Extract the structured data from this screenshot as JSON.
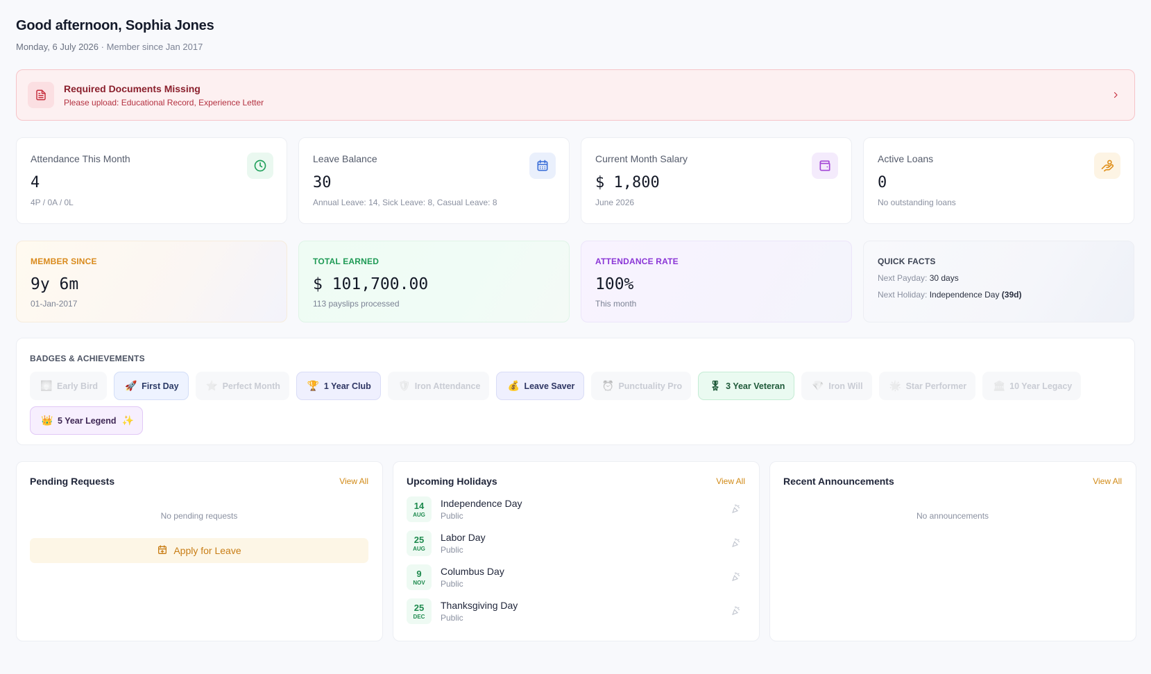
{
  "greeting": {
    "title": "Good afternoon, Sophia Jones",
    "date": "Monday, 6 July 2026",
    "separator": " · ",
    "member": "Member since Jan 2017"
  },
  "alert": {
    "title": "Required Documents Missing",
    "message": "Please upload: Educational Record, Experience Letter",
    "icon": "document-icon"
  },
  "stats": [
    {
      "label": "Attendance This Month",
      "value": "4",
      "note": "4P / 0A / 0L",
      "icon": "clock-icon",
      "color": "#21a15c",
      "bg": "#eaf8f0"
    },
    {
      "label": "Leave Balance",
      "value": "30",
      "note": "Annual Leave: 14, Sick Leave: 8, Casual Leave: 8",
      "icon": "calendar-icon",
      "color": "#3b6fd8",
      "bg": "#eaf0fc"
    },
    {
      "label": "Current Month Salary",
      "value": "$ 1,800",
      "note": "June 2026",
      "icon": "wallet-icon",
      "color": "#a346d6",
      "bg": "#f4ebfc"
    },
    {
      "label": "Active Loans",
      "value": "0",
      "note": "No outstanding loans",
      "icon": "hand-coins-icon",
      "color": "#e0901c",
      "bg": "#fdf4e4"
    }
  ],
  "highlights": {
    "member_since": {
      "label": "MEMBER SINCE",
      "value": "9y 6m",
      "note": "01-Jan-2017"
    },
    "total_earned": {
      "label": "TOTAL EARNED",
      "value": "$ 101,700.00",
      "note": "113 payslips processed"
    },
    "attendance_rate": {
      "label": "ATTENDANCE RATE",
      "value": "100%",
      "note": "This month"
    },
    "quick_facts": {
      "label": "QUICK FACTS",
      "payday_label": "Next Payday: ",
      "payday_value": "30 days",
      "holiday_label": "Next Holiday: ",
      "holiday_value": "Independence Day",
      "holiday_days": "(39d)"
    }
  },
  "badges": {
    "title": "BADGES & ACHIEVEMENTS",
    "items": [
      {
        "label": "Early Bird",
        "emoji": "🌅",
        "state": "off",
        "icon": "sunrise-icon"
      },
      {
        "label": "First Day",
        "emoji": "🚀",
        "state": "on-blue",
        "icon": "rocket-icon"
      },
      {
        "label": "Perfect Month",
        "emoji": "⭐",
        "state": "off",
        "icon": "star-icon"
      },
      {
        "label": "1 Year Club",
        "emoji": "🏆",
        "state": "on-gold",
        "icon": "trophy-icon"
      },
      {
        "label": "Iron Attendance",
        "emoji": "🛡",
        "state": "off",
        "icon": "shield-icon"
      },
      {
        "label": "Leave Saver",
        "emoji": "💰",
        "state": "on-gold",
        "icon": "money-bag-icon"
      },
      {
        "label": "Punctuality Pro",
        "emoji": "⏰",
        "state": "off",
        "icon": "alarm-clock-icon"
      },
      {
        "label": "3 Year Veteran",
        "emoji": "🎖",
        "state": "on-green",
        "icon": "medal-icon"
      },
      {
        "label": "Iron Will",
        "emoji": "💎",
        "state": "off",
        "icon": "gem-icon"
      },
      {
        "label": "Star Performer",
        "emoji": "🌟",
        "state": "off",
        "icon": "glowing-star-icon"
      },
      {
        "label": "10 Year Legacy",
        "emoji": "🏛",
        "state": "off",
        "icon": "building-icon"
      },
      {
        "label": "5 Year Legend",
        "emoji": "👑",
        "state": "on-purple",
        "icon": "crown-icon",
        "suffix": "✨"
      }
    ]
  },
  "pending": {
    "title": "Pending Requests",
    "view_all": "View All",
    "empty": "No pending requests",
    "apply": "Apply for Leave"
  },
  "holidays": {
    "title": "Upcoming Holidays",
    "view_all": "View All",
    "items": [
      {
        "day": "14",
        "month": "AUG",
        "name": "Independence Day",
        "type": "Public"
      },
      {
        "day": "25",
        "month": "AUG",
        "name": "Labor Day",
        "type": "Public"
      },
      {
        "day": "9",
        "month": "NOV",
        "name": "Columbus Day",
        "type": "Public"
      },
      {
        "day": "25",
        "month": "DEC",
        "name": "Thanksgiving Day",
        "type": "Public"
      }
    ]
  },
  "announcements": {
    "title": "Recent Announcements",
    "view_all": "View All",
    "empty": "No announcements"
  }
}
